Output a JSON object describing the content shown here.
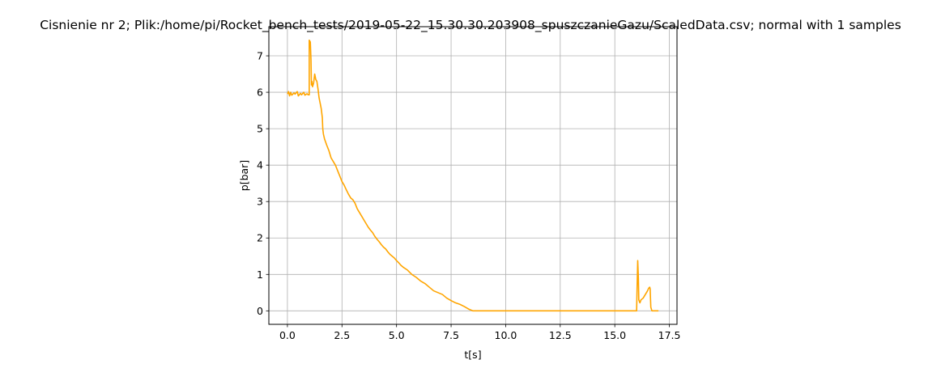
{
  "chart_data": {
    "type": "line",
    "title": "Cisnienie nr 2; Plik:/home/pi/Rocket_bench_tests/2019-05-22_15.30.30.203908_spuszczanieGazu/ScaledData.csv; normal with 1 samples",
    "xlabel": "t[s]",
    "ylabel": "p[bar]",
    "xlim": [
      -0.85,
      17.85
    ],
    "ylim": [
      -0.37,
      7.8
    ],
    "xticks": [
      0.0,
      2.5,
      5.0,
      7.5,
      10.0,
      12.5,
      15.0,
      17.5
    ],
    "xtick_labels": [
      "0.0",
      "2.5",
      "5.0",
      "7.5",
      "10.0",
      "12.5",
      "15.0",
      "17.5"
    ],
    "yticks": [
      0,
      1,
      2,
      3,
      4,
      5,
      6,
      7
    ],
    "ytick_labels": [
      "0",
      "1",
      "2",
      "3",
      "4",
      "5",
      "6",
      "7"
    ],
    "grid": true,
    "series": [
      {
        "color": "#ffa500",
        "x": [
          0.0,
          0.05,
          0.1,
          0.15,
          0.2,
          0.3,
          0.35,
          0.45,
          0.5,
          0.6,
          0.65,
          0.75,
          0.8,
          0.9,
          0.95,
          1.0,
          1.0,
          1.05,
          1.08,
          1.1,
          1.12,
          1.15,
          1.2,
          1.25,
          1.3,
          1.35,
          1.4,
          1.45,
          1.5,
          1.55,
          1.6,
          1.62,
          1.65,
          1.7,
          1.8,
          1.9,
          2.0,
          2.1,
          2.2,
          2.3,
          2.4,
          2.5,
          2.6,
          2.7,
          2.8,
          2.9,
          3.0,
          3.1,
          3.2,
          3.3,
          3.4,
          3.5,
          3.6,
          3.7,
          3.8,
          3.9,
          4.0,
          4.1,
          4.2,
          4.3,
          4.4,
          4.5,
          4.6,
          4.7,
          4.8,
          4.9,
          5.0,
          5.1,
          5.2,
          5.3,
          5.5,
          5.7,
          5.9,
          6.1,
          6.3,
          6.5,
          6.7,
          6.9,
          7.1,
          7.3,
          7.5,
          7.7,
          7.9,
          8.1,
          8.3,
          8.5,
          9.0,
          10.0,
          11.0,
          12.0,
          13.0,
          14.0,
          15.0,
          15.5,
          16.0,
          16.02,
          16.05,
          16.08,
          16.1,
          16.15,
          16.2,
          16.3,
          16.4,
          16.5,
          16.55,
          16.6,
          16.62,
          16.65,
          16.7,
          16.8,
          17.0
        ],
        "y": [
          5.95,
          6.02,
          5.9,
          6.0,
          5.92,
          5.98,
          5.95,
          6.02,
          5.9,
          5.97,
          5.93,
          6.0,
          5.92,
          5.96,
          5.93,
          5.93,
          7.43,
          7.38,
          6.9,
          6.2,
          6.3,
          6.15,
          6.25,
          6.5,
          6.35,
          6.3,
          6.1,
          5.85,
          5.7,
          5.55,
          5.3,
          5.0,
          4.85,
          4.72,
          4.55,
          4.4,
          4.2,
          4.1,
          4.0,
          3.85,
          3.7,
          3.55,
          3.45,
          3.32,
          3.2,
          3.1,
          3.05,
          2.95,
          2.8,
          2.7,
          2.6,
          2.5,
          2.4,
          2.3,
          2.22,
          2.15,
          2.05,
          1.97,
          1.9,
          1.82,
          1.75,
          1.7,
          1.62,
          1.55,
          1.5,
          1.45,
          1.38,
          1.32,
          1.25,
          1.2,
          1.12,
          1.0,
          0.92,
          0.82,
          0.75,
          0.65,
          0.55,
          0.5,
          0.45,
          0.35,
          0.28,
          0.22,
          0.18,
          0.12,
          0.05,
          0.0,
          0.0,
          0.0,
          0.0,
          0.0,
          0.0,
          0.0,
          0.0,
          0.0,
          0.0,
          0.6,
          1.38,
          0.9,
          0.3,
          0.22,
          0.3,
          0.35,
          0.45,
          0.55,
          0.62,
          0.65,
          0.6,
          0.1,
          0.0,
          0.0,
          0.0
        ]
      }
    ]
  }
}
